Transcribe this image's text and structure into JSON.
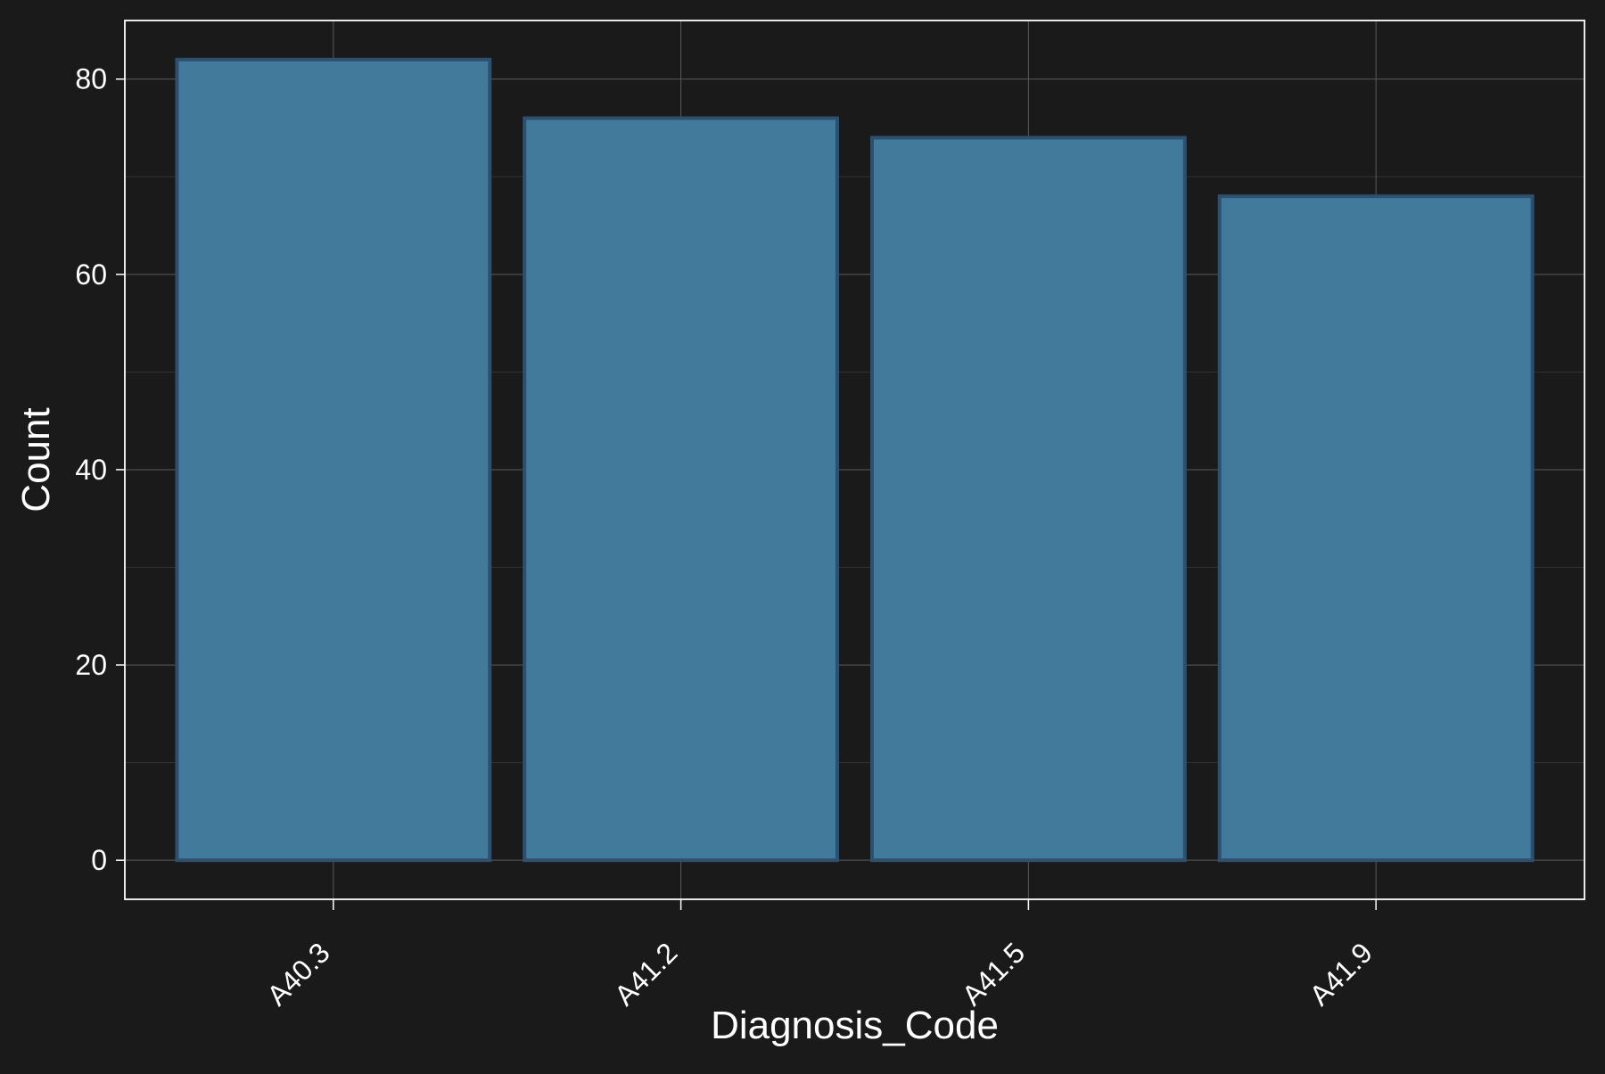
{
  "chart_data": {
    "type": "bar",
    "title": "",
    "xlabel": "Diagnosis_Code",
    "ylabel": "Count",
    "categories": [
      "A40.3",
      "A41.2",
      "A41.5",
      "A41.9"
    ],
    "values": [
      82,
      76,
      74,
      68
    ],
    "ylim": [
      -4,
      86
    ],
    "yticks": [
      0,
      20,
      40,
      60,
      80
    ],
    "ytick_labels": [
      "0",
      "20",
      "40",
      "60",
      "80"
    ],
    "grid": true,
    "legend": "none",
    "colors": {
      "background": "#1a1a1a",
      "panel": "#1a1a1a",
      "bar_fill": "#427a9c",
      "bar_stroke": "#2f4f6f",
      "grid_major": "#5a5a5a",
      "grid_minor": "#333333",
      "panel_border": "#ffffff",
      "text": "#ffffff"
    }
  }
}
